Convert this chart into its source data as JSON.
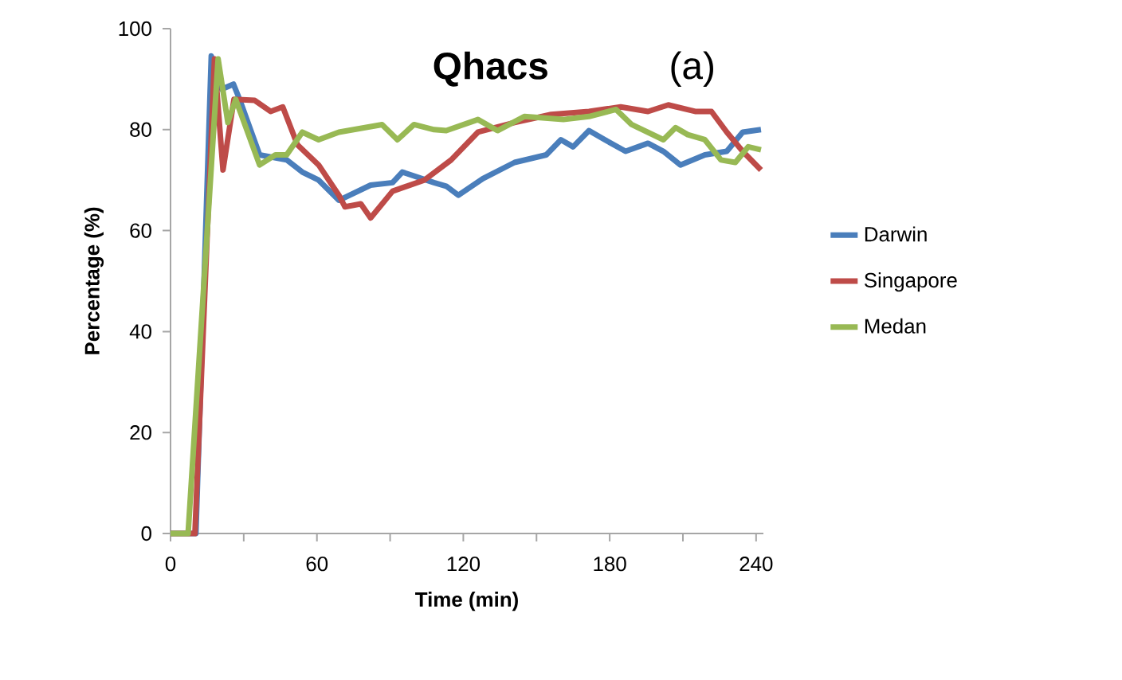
{
  "chart_data": {
    "type": "line",
    "title": "Qhacs",
    "xlabel": "Time (min)",
    "ylabel": "Percentage (%)",
    "annotations": [
      "(a)"
    ],
    "xlim": [
      0,
      243
    ],
    "ylim": [
      0,
      100
    ],
    "xticks": [
      0,
      {
        "value": 30,
        "label": null
      },
      60,
      {
        "value": 90,
        "label": null
      },
      120,
      {
        "value": 150,
        "label": null
      },
      180,
      {
        "value": 210,
        "label": null
      },
      240
    ],
    "yticks": [
      0,
      20,
      40,
      60,
      80,
      100
    ],
    "grid": false,
    "legend": "right",
    "marker": "none",
    "line_style": "solid",
    "series": [
      {
        "name": "Darwin",
        "color": "#4a7ebb",
        "x": [
          0,
          10.4,
          16.7,
          21,
          25.8,
          28.3,
          36.5,
          47.6,
          54,
          60.7,
          69,
          82,
          91,
          95,
          108,
          113,
          118,
          128,
          141,
          154,
          160,
          165,
          171.5,
          178,
          186.5,
          195.7,
          202,
          209,
          219,
          228,
          234.5,
          242
        ],
        "values": [
          0,
          0,
          94.6,
          88,
          89,
          86,
          75,
          74,
          71.6,
          70,
          66,
          69,
          69.5,
          71.6,
          69.5,
          68.8,
          67,
          70.3,
          73.5,
          75,
          78,
          76.6,
          79.8,
          78,
          75.7,
          77.3,
          75.7,
          73,
          75,
          75.7,
          79.5,
          80
        ]
      },
      {
        "name": "Singapore",
        "color": "#be4b48",
        "x": [
          0,
          10,
          18,
          21.5,
          26,
          34.5,
          41,
          46,
          52,
          60.7,
          69,
          71.5,
          78,
          82,
          91,
          104,
          115,
          126,
          141,
          156,
          171.5,
          184.5,
          195.7,
          204,
          215,
          221.7,
          228,
          234.5,
          242
        ],
        "values": [
          0,
          0,
          94,
          72,
          86,
          85.8,
          83.6,
          84.5,
          77,
          73,
          67,
          64.7,
          65.3,
          62.5,
          67.8,
          70,
          74,
          79.5,
          81.4,
          83,
          83.6,
          84.5,
          83.6,
          84.9,
          83.6,
          83.6,
          79.5,
          75.7,
          72
        ]
      },
      {
        "name": "Medan",
        "color": "#98b954",
        "x": [
          0,
          7.2,
          19.5,
          23.5,
          26.7,
          36.5,
          43,
          47.6,
          54,
          60.7,
          69,
          86.7,
          93,
          99.8,
          108,
          113,
          126,
          134,
          145,
          161,
          171.5,
          182.6,
          189,
          202,
          207,
          212,
          219,
          225.6,
          231.5,
          236.8,
          242
        ],
        "values": [
          0,
          0,
          94,
          81.4,
          86,
          73,
          75,
          75,
          79.5,
          78,
          79.5,
          81,
          78,
          81,
          80,
          79.8,
          82,
          79.8,
          82.6,
          82,
          82.6,
          84,
          81,
          78,
          80.4,
          79,
          78,
          74,
          73.5,
          76.6,
          76
        ]
      }
    ]
  }
}
